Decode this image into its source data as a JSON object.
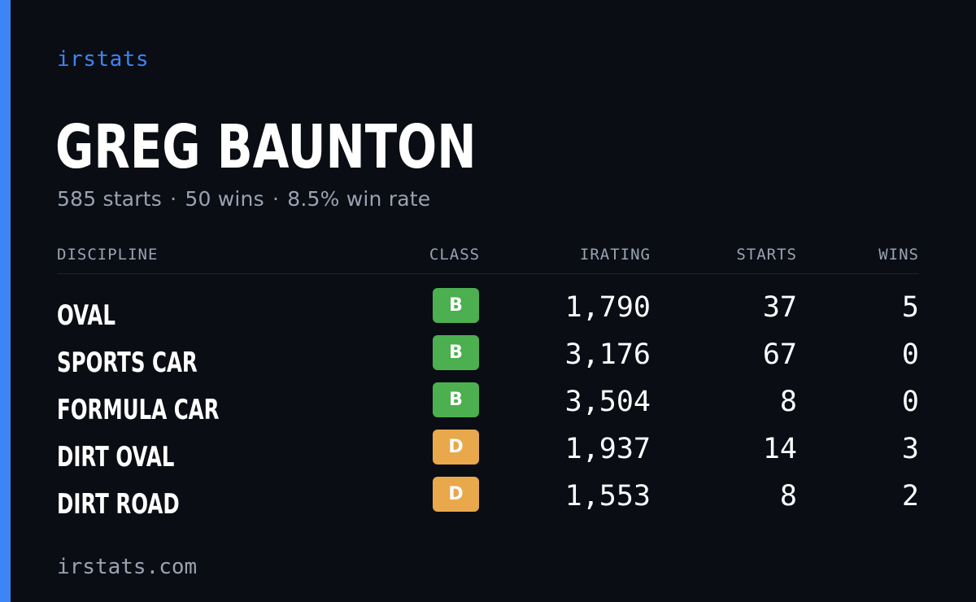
{
  "brand": "irstats",
  "player": {
    "name": "GREG BAUNTON",
    "starts": "585 starts",
    "wins": "50 wins",
    "win_rate": "8.5% win rate",
    "separator": "·"
  },
  "table": {
    "headers": {
      "discipline": "DISCIPLINE",
      "class": "CLASS",
      "irating": "IRATING",
      "starts": "STARTS",
      "wins": "WINS"
    },
    "rows": [
      {
        "discipline": "OVAL",
        "class": "B",
        "irating": "1,790",
        "starts": "37",
        "wins": "5"
      },
      {
        "discipline": "SPORTS CAR",
        "class": "B",
        "irating": "3,176",
        "starts": "67",
        "wins": "0"
      },
      {
        "discipline": "FORMULA CAR",
        "class": "B",
        "irating": "3,504",
        "starts": "8",
        "wins": "0"
      },
      {
        "discipline": "DIRT OVAL",
        "class": "D",
        "irating": "1,937",
        "starts": "14",
        "wins": "3"
      },
      {
        "discipline": "DIRT ROAD",
        "class": "D",
        "irating": "1,553",
        "starts": "8",
        "wins": "2"
      }
    ]
  },
  "class_colors": {
    "B": "#4caf50",
    "D": "#e9a84c"
  },
  "accent_color": "#3d84f4",
  "footer": "irstats.com"
}
